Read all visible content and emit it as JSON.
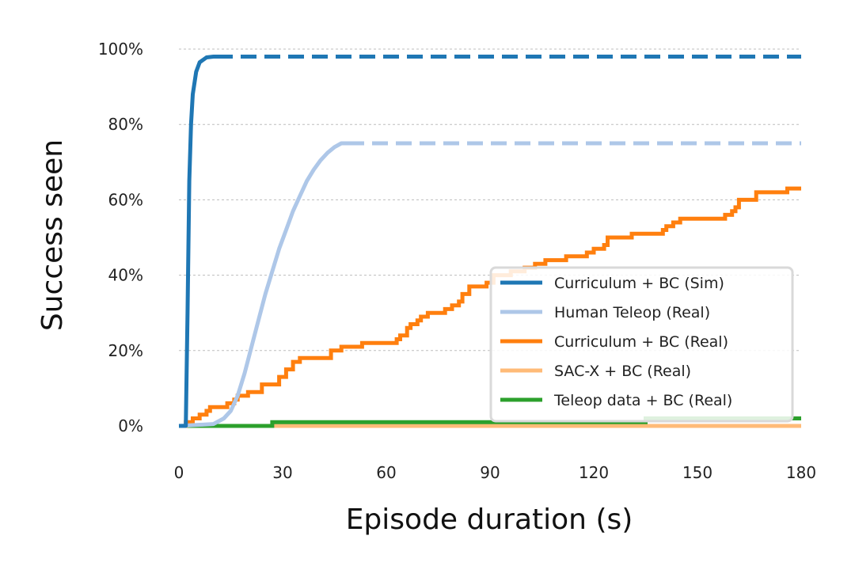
{
  "chart_data": {
    "type": "line",
    "xlabel": "Episode duration (s)",
    "ylabel": "Success seen",
    "xlim": [
      0,
      180
    ],
    "ylim": [
      0,
      100
    ],
    "x_ticks": [
      0,
      30,
      60,
      90,
      120,
      150,
      180
    ],
    "x_tick_labels": [
      "0",
      "30",
      "60",
      "90",
      "120",
      "150",
      "180"
    ],
    "y_ticks": [
      0,
      20,
      40,
      60,
      80,
      100
    ],
    "y_tick_labels": [
      "0%",
      "20%",
      "40%",
      "60%",
      "80%",
      "100%"
    ],
    "grid": "horizontal dashed",
    "legend_position": "lower-right",
    "series": [
      {
        "name": "Curriculum + BC (Sim)",
        "color": "#1f77b4",
        "solid": [
          [
            0,
            0
          ],
          [
            2,
            0
          ],
          [
            2.5,
            30
          ],
          [
            3,
            65
          ],
          [
            3.5,
            80
          ],
          [
            4,
            88
          ],
          [
            5,
            94
          ],
          [
            6,
            96.5
          ],
          [
            8,
            97.8
          ],
          [
            10,
            98
          ],
          [
            11,
            98
          ]
        ],
        "dashed": [
          [
            11,
            98
          ],
          [
            180,
            98
          ]
        ]
      },
      {
        "name": "Human Teleop (Real)",
        "color": "#aec7e8",
        "solid": [
          [
            0,
            0
          ],
          [
            10,
            0.5
          ],
          [
            13,
            2
          ],
          [
            15,
            4
          ],
          [
            17,
            8
          ],
          [
            19,
            14
          ],
          [
            21,
            21
          ],
          [
            23,
            28
          ],
          [
            25,
            35
          ],
          [
            27,
            41
          ],
          [
            29,
            47
          ],
          [
            31,
            52
          ],
          [
            33,
            57
          ],
          [
            35,
            61
          ],
          [
            37,
            65
          ],
          [
            39,
            68
          ],
          [
            41,
            70.5
          ],
          [
            43,
            72.5
          ],
          [
            45,
            74
          ],
          [
            47,
            75
          ],
          [
            49,
            75
          ]
        ],
        "dashed": [
          [
            49,
            75
          ],
          [
            180,
            75
          ]
        ]
      },
      {
        "name": "Curriculum + BC (Real)",
        "color": "#ff7f0e",
        "steps": [
          [
            0,
            0
          ],
          [
            2,
            1
          ],
          [
            4,
            2
          ],
          [
            6,
            3
          ],
          [
            8,
            4
          ],
          [
            9,
            5
          ],
          [
            14,
            6
          ],
          [
            16,
            7
          ],
          [
            17,
            8
          ],
          [
            20,
            9
          ],
          [
            24,
            11
          ],
          [
            29,
            13
          ],
          [
            31,
            15
          ],
          [
            33,
            17
          ],
          [
            35,
            18
          ],
          [
            44,
            20
          ],
          [
            47,
            21
          ],
          [
            53,
            22
          ],
          [
            63,
            23
          ],
          [
            64,
            24
          ],
          [
            66,
            26
          ],
          [
            67,
            27
          ],
          [
            69,
            28
          ],
          [
            70,
            29
          ],
          [
            72,
            30
          ],
          [
            77,
            31
          ],
          [
            79,
            32
          ],
          [
            81,
            33
          ],
          [
            82,
            35
          ],
          [
            84,
            37
          ],
          [
            89,
            38
          ],
          [
            91,
            40
          ],
          [
            96,
            41
          ],
          [
            100,
            42
          ],
          [
            103,
            43
          ],
          [
            106,
            44
          ],
          [
            112,
            45
          ],
          [
            118,
            46
          ],
          [
            120,
            47
          ],
          [
            123,
            48
          ],
          [
            124,
            50
          ],
          [
            131,
            51
          ],
          [
            140,
            52
          ],
          [
            141,
            53
          ],
          [
            143,
            54
          ],
          [
            145,
            55
          ],
          [
            158,
            56
          ],
          [
            160,
            57
          ],
          [
            161,
            58
          ],
          [
            162,
            60
          ],
          [
            167,
            62
          ],
          [
            176,
            63
          ],
          [
            180,
            63
          ]
        ]
      },
      {
        "name": "SAC-X + BC (Real)",
        "color": "#ffbb78",
        "steps": [
          [
            0,
            0
          ],
          [
            180,
            0
          ]
        ]
      },
      {
        "name": "Teleop data + BC (Real)",
        "color": "#2ca02c",
        "steps": [
          [
            0,
            0
          ],
          [
            27,
            0
          ],
          [
            27,
            1
          ],
          [
            135,
            1
          ],
          [
            135,
            2
          ],
          [
            180,
            2
          ]
        ]
      }
    ]
  }
}
